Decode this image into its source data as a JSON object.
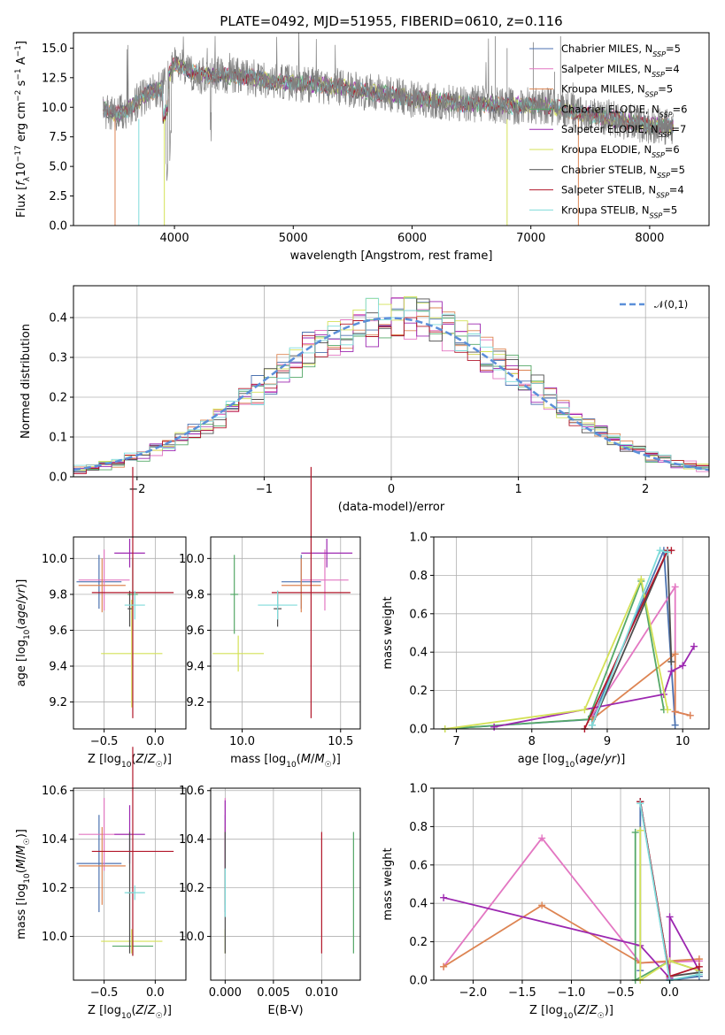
{
  "chart_data": [
    {
      "type": "line",
      "title": "PLATE=0492, MJD=51955, FIBERID=0610, z=0.116",
      "xlabel": "wavelength [Angstrom, rest frame]",
      "ylabel": "Flux [f_λ 10^-17 erg cm^-2 s^-1 A^-1]",
      "xlim": [
        3150,
        8500
      ],
      "ylim": [
        0,
        16.3
      ],
      "xticks": [
        4000,
        5000,
        6000,
        7000,
        8000
      ],
      "yticks": [
        0.0,
        2.5,
        5.0,
        7.5,
        10.0,
        12.5,
        15.0
      ],
      "ytick_labels": [
        "0.0",
        "2.5",
        "5.0",
        "7.5",
        "10.0",
        "12.5",
        "15.0"
      ],
      "legend_position": "top-right",
      "data_color": "#808080",
      "data_envelope": [
        [
          3400,
          9.9
        ],
        [
          3500,
          9.3
        ],
        [
          3600,
          9.8
        ],
        [
          3700,
          10.6
        ],
        [
          3800,
          11.3
        ],
        [
          3900,
          11.6
        ],
        [
          4000,
          13.6
        ],
        [
          4100,
          13.3
        ],
        [
          4200,
          12.7
        ],
        [
          4400,
          12.7
        ],
        [
          4600,
          12.6
        ],
        [
          4800,
          12.2
        ],
        [
          5000,
          12.0
        ],
        [
          5200,
          11.9
        ],
        [
          5400,
          11.7
        ],
        [
          5600,
          11.3
        ],
        [
          5800,
          11.1
        ],
        [
          6000,
          10.7
        ],
        [
          6200,
          10.6
        ],
        [
          6400,
          10.3
        ],
        [
          6600,
          10.3
        ],
        [
          6800,
          10.1
        ],
        [
          7000,
          10.2
        ],
        [
          7200,
          10.0
        ],
        [
          7400,
          9.5
        ],
        [
          7600,
          9.2
        ],
        [
          7800,
          8.8
        ],
        [
          8000,
          8.5
        ],
        [
          8200,
          8.3
        ]
      ],
      "series": [
        {
          "name": "Chabrier MILES, N_SSP=5",
          "color": "#4c72b0"
        },
        {
          "name": "Salpeter MILES, N_SSP=4",
          "color": "#e377c2"
        },
        {
          "name": "Kroupa MILES, N_SSP=5",
          "color": "#dd8452"
        },
        {
          "name": "Chabrier ELODIE, N_SSP=6",
          "color": "#55a868"
        },
        {
          "name": "Salpeter ELODIE, N_SSP=7",
          "color": "#9c27b0"
        },
        {
          "name": "Kroupa ELODIE, N_SSP=6",
          "color": "#d4e157"
        },
        {
          "name": "Chabrier STELIB, N_SSP=5",
          "color": "#4d4d4d"
        },
        {
          "name": "Salpeter STELIB, N_SSP=4",
          "color": "#b2182b"
        },
        {
          "name": "Kroupa STELIB, N_SSP=5",
          "color": "#7fdbda"
        }
      ]
    },
    {
      "type": "line",
      "xlabel": "(data-model)/error",
      "ylabel": "Normed distribution",
      "xlim": [
        -2.5,
        2.5
      ],
      "ylim": [
        0,
        0.48
      ],
      "xticks": [
        -2,
        -1,
        0,
        1,
        2
      ],
      "xtick_labels": [
        "−2",
        "−1",
        "0",
        "1",
        "2"
      ],
      "yticks": [
        0.0,
        0.1,
        0.2,
        0.3,
        0.4
      ],
      "ytick_labels": [
        "0.0",
        "0.1",
        "0.2",
        "0.3",
        "0.4"
      ],
      "legend_position": "top-right",
      "grid": true,
      "reference": {
        "name": "𝒩(0,1)",
        "color": "#5b8fd9",
        "style": "dashed"
      },
      "hist_colors": [
        "#4c72b0",
        "#e377c2",
        "#dd8452",
        "#55a868",
        "#9c27b0",
        "#d4e157",
        "#4d4d4d",
        "#b2182b",
        "#7fdbda"
      ]
    },
    {
      "type": "scatter",
      "xlabel": "Z [log10(Z/Z☉)]",
      "ylabel": "age  [log10(age/yr)]",
      "xlim": [
        -0.8,
        0.3
      ],
      "ylim": [
        9.05,
        10.12
      ],
      "xticks": [
        -0.5,
        0.0
      ],
      "xtick_labels": [
        "−0.5",
        "0.0"
      ],
      "yticks": [
        9.2,
        9.4,
        9.6,
        9.8,
        10.0
      ],
      "ytick_labels": [
        "9.2",
        "9.4",
        "9.6",
        "9.8",
        "10.0"
      ],
      "grid": true,
      "points": [
        {
          "x": -0.55,
          "y": 9.87,
          "xerr": 0.22,
          "yerr": 0.15,
          "color": "#4c72b0"
        },
        {
          "x": -0.5,
          "y": 9.88,
          "xerr": 0.25,
          "yerr": 0.17,
          "color": "#e377c2"
        },
        {
          "x": -0.52,
          "y": 9.85,
          "xerr": 0.23,
          "yerr": 0.15,
          "color": "#dd8452"
        },
        {
          "x": -0.22,
          "y": 9.8,
          "xerr": 0.05,
          "yerr": 0.2,
          "color": "#55a868"
        },
        {
          "x": -0.25,
          "y": 10.03,
          "xerr": 0.15,
          "yerr": 0.08,
          "color": "#9c27b0"
        },
        {
          "x": -0.23,
          "y": 9.47,
          "xerr": 0.3,
          "yerr": 0.3,
          "color": "#d4e157"
        },
        {
          "x": -0.25,
          "y": 9.72,
          "xerr": 0.02,
          "yerr": 0.1,
          "color": "#4d4d4d"
        },
        {
          "x": -0.22,
          "y": 9.81,
          "xerr": 0.4,
          "yerr": 0.7,
          "color": "#b2182b"
        },
        {
          "x": -0.2,
          "y": 9.74,
          "xerr": 0.1,
          "yerr": 0.08,
          "color": "#7fdbda"
        }
      ]
    },
    {
      "type": "scatter",
      "xlabel": "mass [log10(M/M☉)]",
      "ylim": [
        9.05,
        10.12
      ],
      "xlim": [
        9.84,
        10.6
      ],
      "xticks": [
        10.0,
        10.5
      ],
      "xtick_labels": [
        "10.0",
        "10.5"
      ],
      "yticks": [
        9.2,
        9.4,
        9.6,
        9.8,
        10.0
      ],
      "ytick_labels": [
        "9.2",
        "9.4",
        "9.6",
        "9.8",
        "10.0"
      ],
      "grid": true,
      "points": [
        {
          "x": 10.3,
          "y": 9.87,
          "xerr": 0.1,
          "yerr": 0.15,
          "color": "#4c72b0"
        },
        {
          "x": 10.42,
          "y": 9.88,
          "xerr": 0.12,
          "yerr": 0.17,
          "color": "#e377c2"
        },
        {
          "x": 10.3,
          "y": 9.85,
          "xerr": 0.1,
          "yerr": 0.15,
          "color": "#dd8452"
        },
        {
          "x": 9.96,
          "y": 9.8,
          "xerr": 0.02,
          "yerr": 0.22,
          "color": "#55a868"
        },
        {
          "x": 10.43,
          "y": 10.03,
          "xerr": 0.13,
          "yerr": 0.08,
          "color": "#9c27b0"
        },
        {
          "x": 9.98,
          "y": 9.47,
          "xerr": 0.13,
          "yerr": 0.1,
          "color": "#d4e157"
        },
        {
          "x": 10.18,
          "y": 9.72,
          "xerr": 0.02,
          "yerr": 0.1,
          "color": "#4d4d4d"
        },
        {
          "x": 10.35,
          "y": 9.81,
          "xerr": 0.2,
          "yerr": 0.7,
          "color": "#b2182b"
        },
        {
          "x": 10.18,
          "y": 9.74,
          "xerr": 0.1,
          "yerr": 0.08,
          "color": "#7fdbda"
        }
      ]
    },
    {
      "type": "line",
      "xlabel": "age  [log10(age/yr)]",
      "ylabel": "mass weight",
      "xlim": [
        6.7,
        10.35
      ],
      "ylim": [
        0,
        1.0
      ],
      "xticks": [
        7,
        8,
        9,
        10
      ],
      "yticks": [
        0.0,
        0.2,
        0.4,
        0.6,
        0.8,
        1.0
      ],
      "ytick_labels": [
        "0.0",
        "0.2",
        "0.4",
        "0.6",
        "0.8",
        "1.0"
      ],
      "grid": true,
      "series": [
        {
          "color": "#4c72b0",
          "points": [
            [
              6.85,
              0.0
            ],
            [
              8.8,
              0.05
            ],
            [
              9.75,
              0.93
            ],
            [
              9.9,
              0.02
            ]
          ]
        },
        {
          "color": "#e377c2",
          "points": [
            [
              8.8,
              0.07
            ],
            [
              9.9,
              0.74
            ],
            [
              9.9,
              0.09
            ],
            [
              10.1,
              0.07
            ]
          ]
        },
        {
          "color": "#dd8452",
          "points": [
            [
              8.8,
              0.05
            ],
            [
              9.9,
              0.39
            ],
            [
              9.9,
              0.09
            ],
            [
              10.1,
              0.07
            ]
          ]
        },
        {
          "color": "#55a868",
          "points": [
            [
              6.85,
              0.0
            ],
            [
              8.75,
              0.05
            ],
            [
              9.45,
              0.77
            ],
            [
              9.75,
              0.1
            ]
          ]
        },
        {
          "color": "#9c27b0",
          "points": [
            [
              7.5,
              0.01
            ],
            [
              9.75,
              0.18
            ],
            [
              9.85,
              0.3
            ],
            [
              10.0,
              0.33
            ],
            [
              10.15,
              0.43
            ]
          ]
        },
        {
          "color": "#d4e157",
          "points": [
            [
              6.85,
              0.0
            ],
            [
              8.7,
              0.1
            ],
            [
              9.45,
              0.78
            ],
            [
              9.8,
              0.1
            ]
          ]
        },
        {
          "color": "#4d4d4d",
          "points": [
            [
              8.8,
              0.02
            ],
            [
              9.8,
              0.93
            ],
            [
              9.85,
              0.35
            ]
          ]
        },
        {
          "color": "#b2182b",
          "points": [
            [
              8.7,
              0.0
            ],
            [
              9.8,
              0.93
            ],
            [
              9.85,
              0.93
            ]
          ]
        },
        {
          "color": "#7fdbda",
          "points": [
            [
              8.8,
              0.02
            ],
            [
              9.7,
              0.93
            ],
            [
              9.8,
              0.92
            ]
          ]
        }
      ]
    },
    {
      "type": "scatter",
      "xlabel": "Z [log10(Z/Z☉)]",
      "ylabel": "mass [log10(M/M☉)]",
      "xlim": [
        -0.8,
        0.3
      ],
      "ylim": [
        9.82,
        10.61
      ],
      "xticks": [
        -0.5,
        0.0
      ],
      "xtick_labels": [
        "−0.5",
        "0.0"
      ],
      "yticks": [
        10.0,
        10.2,
        10.4,
        10.6
      ],
      "ytick_labels": [
        "10.0",
        "10.2",
        "10.4",
        "10.6"
      ],
      "grid": true,
      "points": [
        {
          "x": -0.55,
          "y": 10.3,
          "xerr": 0.22,
          "yerr": 0.2,
          "color": "#4c72b0"
        },
        {
          "x": -0.5,
          "y": 10.42,
          "xerr": 0.25,
          "yerr": 0.15,
          "color": "#e377c2"
        },
        {
          "x": -0.52,
          "y": 10.29,
          "xerr": 0.23,
          "yerr": 0.16,
          "color": "#dd8452"
        },
        {
          "x": -0.22,
          "y": 9.96,
          "xerr": 0.2,
          "yerr": 0.04,
          "color": "#55a868"
        },
        {
          "x": -0.25,
          "y": 10.42,
          "xerr": 0.15,
          "yerr": 0.12,
          "color": "#9c27b0"
        },
        {
          "x": -0.23,
          "y": 9.98,
          "xerr": 0.3,
          "yerr": 0.05,
          "color": "#d4e157"
        },
        {
          "x": -0.25,
          "y": 10.18,
          "xerr": 0.02,
          "yerr": 0.25,
          "color": "#4d4d4d"
        },
        {
          "x": -0.22,
          "y": 10.35,
          "xerr": 0.4,
          "yerr": 0.43,
          "color": "#b2182b"
        },
        {
          "x": -0.2,
          "y": 10.18,
          "xerr": 0.1,
          "yerr": 0.03,
          "color": "#7fdbda"
        }
      ]
    },
    {
      "type": "scatter",
      "xlabel": "E(B-V)",
      "xlim": [
        -0.0015,
        0.014
      ],
      "ylim": [
        9.82,
        10.61
      ],
      "xticks": [
        0.0,
        0.005,
        0.01
      ],
      "xtick_labels": [
        "0.000",
        "0.005",
        "0.010"
      ],
      "yticks": [
        10.0,
        10.2,
        10.4,
        10.6
      ],
      "ytick_labels": [
        "10.0",
        "10.2",
        "10.4",
        "10.6"
      ],
      "grid": true,
      "points": [
        {
          "x": 0.0,
          "y": 10.3,
          "yerr": 0.2,
          "color": "#4c72b0"
        },
        {
          "x": 0.0,
          "y": 10.42,
          "yerr": 0.15,
          "color": "#e377c2"
        },
        {
          "x": 0.0,
          "y": 10.29,
          "yerr": 0.16,
          "color": "#dd8452"
        },
        {
          "x": 0.0133,
          "y": 10.18,
          "yerr": 0.25,
          "color": "#55a868"
        },
        {
          "x": 0.0,
          "y": 10.42,
          "yerr": 0.14,
          "color": "#9c27b0"
        },
        {
          "x": 0.0,
          "y": 9.98,
          "yerr": 0.05,
          "color": "#d4e157"
        },
        {
          "x": 0.0,
          "y": 10.18,
          "yerr": 0.25,
          "color": "#4d4d4d"
        },
        {
          "x": 0.01,
          "y": 10.18,
          "yerr": 0.25,
          "color": "#b2182b"
        },
        {
          "x": 0.0,
          "y": 10.18,
          "yerr": 0.1,
          "color": "#7fdbda"
        }
      ]
    },
    {
      "type": "line",
      "xlabel": "Z [log10(Z/Z☉)]",
      "ylabel": "mass weight",
      "xlim": [
        -2.4,
        0.4
      ],
      "ylim": [
        0,
        1.0
      ],
      "xticks": [
        -2.0,
        -1.5,
        -1.0,
        -0.5,
        0.0
      ],
      "xtick_labels": [
        "−2.0",
        "−1.5",
        "−1.0",
        "−0.5",
        "0.0"
      ],
      "yticks": [
        0.0,
        0.2,
        0.4,
        0.6,
        0.8,
        1.0
      ],
      "ytick_labels": [
        "0.0",
        "0.2",
        "0.4",
        "0.6",
        "0.8",
        "1.0"
      ],
      "grid": true,
      "series": [
        {
          "color": "#4c72b0",
          "points": [
            [
              -0.3,
              0.05
            ],
            [
              -0.3,
              0.93
            ],
            [
              0.0,
              0.0
            ],
            [
              0.3,
              0.02
            ]
          ]
        },
        {
          "color": "#e377c2",
          "points": [
            [
              -2.3,
              0.07
            ],
            [
              -1.3,
              0.74
            ],
            [
              -0.3,
              0.09
            ],
            [
              0.3,
              0.1
            ]
          ]
        },
        {
          "color": "#dd8452",
          "points": [
            [
              -2.3,
              0.07
            ],
            [
              -1.3,
              0.39
            ],
            [
              -0.3,
              0.09
            ],
            [
              0.3,
              0.11
            ]
          ]
        },
        {
          "color": "#55a868",
          "points": [
            [
              -0.35,
              0.77
            ],
            [
              -0.35,
              0.0
            ],
            [
              0.0,
              0.1
            ],
            [
              0.3,
              0.05
            ]
          ]
        },
        {
          "color": "#9c27b0",
          "points": [
            [
              -2.3,
              0.43
            ],
            [
              -0.3,
              0.18
            ],
            [
              0.0,
              0.01
            ],
            [
              0.0,
              0.33
            ],
            [
              0.3,
              0.05
            ]
          ]
        },
        {
          "color": "#d4e157",
          "points": [
            [
              -0.3,
              0.78
            ],
            [
              -0.3,
              0.0
            ],
            [
              0.0,
              0.1
            ],
            [
              0.3,
              0.05
            ]
          ]
        },
        {
          "color": "#4d4d4d",
          "points": [
            [
              -0.3,
              0.93
            ],
            [
              0.0,
              0.02
            ],
            [
              0.3,
              0.04
            ]
          ]
        },
        {
          "color": "#b2182b",
          "points": [
            [
              -0.3,
              0.93
            ],
            [
              0.0,
              0.02
            ],
            [
              0.3,
              0.07
            ]
          ]
        },
        {
          "color": "#7fdbda",
          "points": [
            [
              -0.3,
              0.92
            ],
            [
              0.0,
              0.0
            ],
            [
              0.3,
              0.03
            ]
          ]
        }
      ]
    }
  ]
}
